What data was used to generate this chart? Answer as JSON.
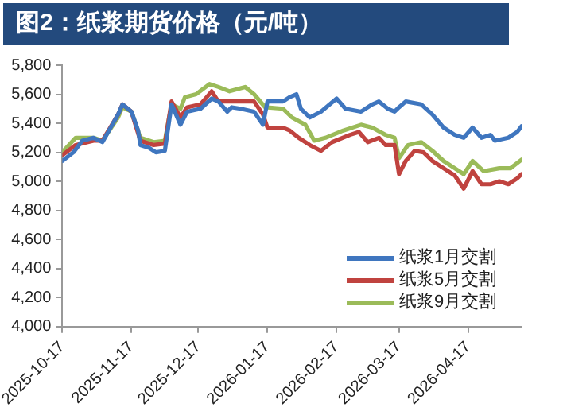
{
  "chart_data": {
    "type": "line",
    "title": "图2：纸浆期货价格（元/吨）",
    "xlim": [
      "2025-10-17",
      "2026-05-11"
    ],
    "xticks": [
      "2025-10-17",
      "2025-11-17",
      "2025-12-17",
      "2026-01-17",
      "2026-02-17",
      "2026-03-17",
      "2026-04-17"
    ],
    "ylim": [
      4000,
      5800
    ],
    "yticks": [
      {
        "value": 4000,
        "label": "4,000"
      },
      {
        "value": 4200,
        "label": "4,200"
      },
      {
        "value": 4400,
        "label": "4,400"
      },
      {
        "value": 4600,
        "label": "4,600"
      },
      {
        "value": 4800,
        "label": "4,800"
      },
      {
        "value": 5000,
        "label": "5,000"
      },
      {
        "value": 5200,
        "label": "5,200"
      },
      {
        "value": 5400,
        "label": "5,400"
      },
      {
        "value": 5600,
        "label": "5,600"
      },
      {
        "value": 5800,
        "label": "5,800"
      }
    ],
    "legend": "bottom right",
    "grid": false,
    "series": [
      {
        "name": "纸浆1月交割",
        "color": "#3f76bf",
        "x": [
          "2025-10-17",
          "2025-10-22",
          "2025-10-26",
          "2025-10-31",
          "2025-11-04",
          "2025-11-11",
          "2025-11-13",
          "2025-11-17",
          "2025-11-20",
          "2025-11-21",
          "2025-11-25",
          "2025-11-28",
          "2025-12-02",
          "2025-12-05",
          "2025-12-09",
          "2025-12-12",
          "2025-12-18",
          "2025-12-23",
          "2025-12-26",
          "2025-12-30",
          "2026-01-01",
          "2026-01-05",
          "2026-01-11",
          "2026-01-15",
          "2026-01-17",
          "2026-01-24",
          "2026-01-27",
          "2026-01-30",
          "2026-02-01",
          "2026-02-05",
          "2026-02-10",
          "2026-02-17",
          "2026-02-21",
          "2026-02-28",
          "2026-03-05",
          "2026-03-08",
          "2026-03-12",
          "2026-03-15",
          "2026-03-17",
          "2026-03-20",
          "2026-03-27",
          "2026-04-01",
          "2026-04-06",
          "2026-04-11",
          "2026-04-15",
          "2026-04-19",
          "2026-04-23",
          "2026-04-27",
          "2026-04-29",
          "2026-05-05",
          "2026-05-09",
          "2026-05-11"
        ],
        "values": [
          5140,
          5200,
          5280,
          5300,
          5270,
          5460,
          5530,
          5480,
          5350,
          5250,
          5230,
          5200,
          5210,
          5530,
          5390,
          5480,
          5500,
          5570,
          5550,
          5480,
          5510,
          5500,
          5480,
          5390,
          5550,
          5550,
          5580,
          5600,
          5500,
          5440,
          5480,
          5570,
          5500,
          5480,
          5530,
          5550,
          5500,
          5480,
          5510,
          5550,
          5530,
          5460,
          5370,
          5320,
          5300,
          5370,
          5300,
          5320,
          5280,
          5300,
          5340,
          5380
        ]
      },
      {
        "name": "纸浆5月交割",
        "color": "#c0433f",
        "x": [
          "2025-10-17",
          "2025-10-23",
          "2025-10-31",
          "2025-11-04",
          "2025-11-11",
          "2025-11-13",
          "2025-11-17",
          "2025-11-21",
          "2025-11-27",
          "2025-12-02",
          "2025-12-05",
          "2025-12-09",
          "2025-12-12",
          "2025-12-18",
          "2025-12-23",
          "2025-12-26",
          "2026-01-03",
          "2026-01-11",
          "2026-01-15",
          "2026-01-17",
          "2026-01-24",
          "2026-01-27",
          "2026-01-31",
          "2026-02-05",
          "2026-02-10",
          "2026-02-15",
          "2026-02-23",
          "2026-02-27",
          "2026-03-03",
          "2026-03-08",
          "2026-03-11",
          "2026-03-15",
          "2026-03-17",
          "2026-03-20",
          "2026-03-24",
          "2026-03-28",
          "2026-04-01",
          "2026-04-06",
          "2026-04-11",
          "2026-04-15",
          "2026-04-19",
          "2026-04-23",
          "2026-04-27",
          "2026-05-01",
          "2026-05-05",
          "2026-05-09",
          "2026-05-11"
        ],
        "values": [
          5180,
          5250,
          5280,
          5280,
          5460,
          5530,
          5480,
          5280,
          5250,
          5260,
          5550,
          5440,
          5510,
          5530,
          5620,
          5550,
          5550,
          5550,
          5460,
          5370,
          5370,
          5350,
          5300,
          5250,
          5210,
          5270,
          5320,
          5340,
          5270,
          5300,
          5250,
          5250,
          5050,
          5140,
          5210,
          5200,
          5140,
          5090,
          5040,
          4950,
          5070,
          4980,
          4980,
          5000,
          4980,
          5020,
          5050
        ]
      },
      {
        "name": "纸浆9月交割",
        "color": "#9bbb59",
        "x": [
          "2025-10-17",
          "2025-10-23",
          "2025-10-31",
          "2025-11-04",
          "2025-11-11",
          "2025-11-13",
          "2025-11-17",
          "2025-11-21",
          "2025-11-27",
          "2025-12-02",
          "2025-12-05",
          "2025-12-09",
          "2025-12-11",
          "2025-12-16",
          "2025-12-22",
          "2025-12-26",
          "2025-12-31",
          "2026-01-07",
          "2026-01-11",
          "2026-01-16",
          "2026-01-24",
          "2026-01-28",
          "2026-02-03",
          "2026-02-07",
          "2026-02-12",
          "2026-02-20",
          "2026-02-28",
          "2026-03-05",
          "2026-03-11",
          "2026-03-15",
          "2026-03-17",
          "2026-03-21",
          "2026-03-27",
          "2026-04-01",
          "2026-04-06",
          "2026-04-11",
          "2026-04-15",
          "2026-04-19",
          "2026-04-24",
          "2026-05-01",
          "2026-05-06",
          "2026-05-11"
        ],
        "values": [
          5200,
          5300,
          5300,
          5280,
          5440,
          5510,
          5480,
          5300,
          5270,
          5280,
          5530,
          5500,
          5580,
          5600,
          5670,
          5650,
          5620,
          5650,
          5600,
          5510,
          5500,
          5440,
          5390,
          5280,
          5300,
          5350,
          5390,
          5370,
          5320,
          5300,
          5160,
          5250,
          5270,
          5210,
          5140,
          5090,
          5050,
          5140,
          5070,
          5090,
          5090,
          5150
        ]
      }
    ]
  }
}
